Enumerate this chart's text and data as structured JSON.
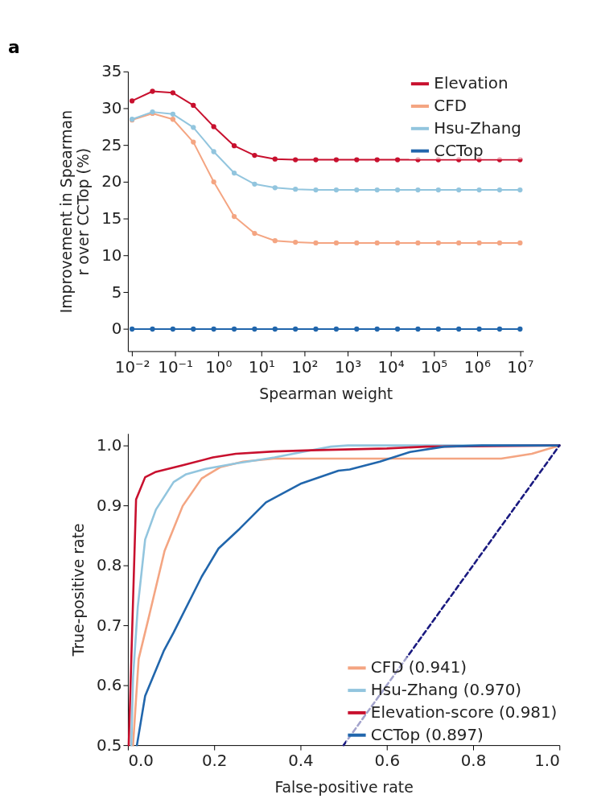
{
  "chart_data": [
    {
      "type": "line",
      "annotations": [
        "a"
      ],
      "xlabel": "Spearman weight",
      "ylabel": "Improvement in Spearman\nr over CCTop (%)",
      "log": "x",
      "marker": "circle",
      "legend": "top right",
      "x": [
        0.01,
        0.0298,
        0.0886,
        0.264,
        0.785,
        2.34,
        6.95,
        20.7,
        61.6,
        183,
        546,
        1624,
        4833,
        14384,
        42813,
        127427,
        379269,
        1128838,
        3359818,
        10000000
      ],
      "xlim": [
        0.008,
        12000000
      ],
      "xticks": [
        {
          "value": 0.01,
          "label": "10⁻²"
        },
        {
          "value": 0.1,
          "label": "10⁻¹"
        },
        {
          "value": 1,
          "label": "10⁰"
        },
        {
          "value": 10,
          "label": "10¹"
        },
        {
          "value": 100,
          "label": "10²"
        },
        {
          "value": 1000,
          "label": "10³"
        },
        {
          "value": 10000,
          "label": "10⁴"
        },
        {
          "value": 100000,
          "label": "10⁵"
        },
        {
          "value": 1000000,
          "label": "10⁶"
        },
        {
          "value": 10000000,
          "label": "10⁷"
        }
      ],
      "ylim": [
        -3,
        35
      ],
      "yticks": [
        0,
        5,
        10,
        15,
        20,
        25,
        30,
        35
      ],
      "series": [
        {
          "name": "Elevation",
          "color": "#c8102e",
          "values": [
            31.0,
            32.3,
            32.1,
            30.4,
            27.5,
            24.9,
            23.6,
            23.1,
            23.0,
            23.0,
            23.0,
            23.0,
            23.0,
            23.0,
            23.0,
            23.0,
            23.0,
            23.0,
            23.0,
            23.0
          ]
        },
        {
          "name": "CFD",
          "color": "#f4a582",
          "values": [
            28.4,
            29.3,
            28.5,
            25.4,
            20.0,
            15.3,
            13.0,
            12.0,
            11.8,
            11.7,
            11.7,
            11.7,
            11.7,
            11.7,
            11.7,
            11.7,
            11.7,
            11.7,
            11.7,
            11.7
          ]
        },
        {
          "name": "Hsu-Zhang",
          "color": "#92c5de",
          "values": [
            28.5,
            29.5,
            29.2,
            27.4,
            24.1,
            21.2,
            19.7,
            19.2,
            19.0,
            18.9,
            18.9,
            18.9,
            18.9,
            18.9,
            18.9,
            18.9,
            18.9,
            18.9,
            18.9,
            18.9
          ]
        },
        {
          "name": "CCTop",
          "color": "#2166ac",
          "values": [
            0,
            0,
            0,
            0,
            0,
            0,
            0,
            0,
            0,
            0,
            0,
            0,
            0,
            0,
            0,
            0,
            0,
            0,
            0,
            0
          ]
        }
      ]
    },
    {
      "type": "line",
      "xlabel": "False-positive rate",
      "ylabel": "True-positive rate",
      "legend": "bottom right",
      "xlim": [
        0,
        1
      ],
      "xticks": [
        {
          "value": 0,
          "label": "0.0"
        },
        0.2,
        0.4,
        0.6,
        0.8,
        {
          "value": 1,
          "label": "1.0"
        }
      ],
      "ylim": [
        0.5,
        1.02
      ],
      "yticks": [
        0.5,
        0.6,
        0.7,
        0.8,
        0.9,
        {
          "value": 1,
          "label": "1.0"
        }
      ],
      "series": [
        {
          "name": "CFD (0.941)",
          "color": "#f4a582",
          "x": [
            0.012,
            0.025,
            0.046,
            0.085,
            0.127,
            0.171,
            0.215,
            0.267,
            0.338,
            0.865,
            0.936,
            1
          ],
          "values": [
            0.5,
            0.644,
            0.706,
            0.824,
            0.899,
            0.945,
            0.964,
            0.973,
            0.978,
            0.978,
            0.986,
            1
          ]
        },
        {
          "name": "Hsu-Zhang (0.970)",
          "color": "#92c5de",
          "x": [
            0.008,
            0.012,
            0.023,
            0.04,
            0.065,
            0.106,
            0.135,
            0.18,
            0.25,
            0.34,
            0.426,
            0.47,
            0.51,
            1
          ],
          "values": [
            0.5,
            0.613,
            0.731,
            0.843,
            0.893,
            0.939,
            0.952,
            0.961,
            0.97,
            0.98,
            0.992,
            0.998,
            1,
            1
          ]
        },
        {
          "name": "Elevation-score (0.981)",
          "color": "#c8102e",
          "x": [
            0.002,
            0.019,
            0.04,
            0.065,
            0.127,
            0.197,
            0.25,
            0.338,
            0.426,
            0.6,
            0.69,
            1
          ],
          "values": [
            0.5,
            0.91,
            0.947,
            0.956,
            0.967,
            0.98,
            0.986,
            0.99,
            0.992,
            0.995,
            0.998,
            1
          ]
        },
        {
          "name": "CCTop (0.897)",
          "color": "#2166ac",
          "x": [
            0.021,
            0.04,
            0.083,
            0.106,
            0.171,
            0.21,
            0.259,
            0.32,
            0.4,
            0.488,
            0.514,
            0.584,
            0.654,
            0.733,
            0.82,
            1
          ],
          "values": [
            0.5,
            0.582,
            0.657,
            0.688,
            0.781,
            0.828,
            0.861,
            0.905,
            0.936,
            0.958,
            0.96,
            0.973,
            0.989,
            0.998,
            1,
            1
          ]
        },
        {
          "color": "#1a1a80",
          "line_style": "dashed",
          "x": [
            0.5,
            1
          ],
          "values": [
            0.5,
            1
          ]
        }
      ]
    }
  ]
}
